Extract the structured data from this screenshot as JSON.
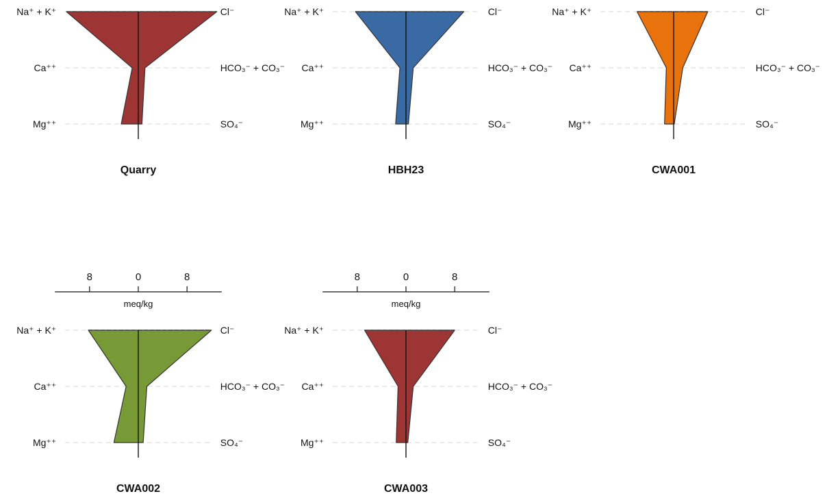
{
  "chart_data": [
    {
      "type": "stiff",
      "title": "Quarry",
      "color": "#9e3535",
      "xlabel": "meq/kg",
      "scale": {
        "ticks": [
          8,
          0,
          8
        ],
        "range": [
          -12,
          12
        ]
      },
      "cations": [
        "Na⁺ + K⁺",
        "Ca⁺⁺",
        "Mg⁺⁺"
      ],
      "anions": [
        "Cl⁻",
        "HCO₃⁻ + CO₃⁻",
        "SO₄⁻"
      ],
      "cation_values": [
        11.8,
        1.0,
        2.8
      ],
      "anion_values": [
        12.9,
        1.1,
        0.6
      ],
      "show_axis": false
    },
    {
      "type": "stiff",
      "title": "HBH23",
      "color": "#3a6aa3",
      "xlabel": "meq/kg",
      "scale": {
        "ticks": [
          8,
          0,
          8
        ],
        "range": [
          -12,
          12
        ]
      },
      "cations": [
        "Na⁺ + K⁺",
        "Ca⁺⁺",
        "Mg⁺⁺"
      ],
      "anions": [
        "Cl⁻",
        "HCO₃⁻ + CO₃⁻",
        "SO₄⁻"
      ],
      "cation_values": [
        8.3,
        1.0,
        1.7
      ],
      "anion_values": [
        9.5,
        1.2,
        0.4
      ],
      "show_axis": false
    },
    {
      "type": "stiff",
      "title": "CWA001",
      "color": "#e8720c",
      "xlabel": "meq/kg",
      "scale": {
        "ticks": [
          8,
          0,
          8
        ],
        "range": [
          -12,
          12
        ]
      },
      "cations": [
        "Na⁺ + K⁺",
        "Ca⁺⁺",
        "Mg⁺⁺"
      ],
      "anions": [
        "Cl⁻",
        "HCO₃⁻ + CO₃⁻",
        "SO₄⁻"
      ],
      "cation_values": [
        6.0,
        1.2,
        1.5
      ],
      "anion_values": [
        5.6,
        1.5,
        0.1
      ],
      "show_axis": false
    },
    {
      "type": "stiff",
      "title": "CWA002",
      "color": "#779a37",
      "xlabel": "meq/kg",
      "scale": {
        "ticks": [
          8,
          0,
          8
        ],
        "range": [
          -12,
          12
        ]
      },
      "cations": [
        "Na⁺ + K⁺",
        "Ca⁺⁺",
        "Mg⁺⁺"
      ],
      "anions": [
        "Cl⁻",
        "HCO₃⁻ + CO₃⁻",
        "SO₄⁻"
      ],
      "cation_values": [
        8.2,
        2.0,
        4.0
      ],
      "anion_values": [
        12.0,
        1.4,
        0.8
      ],
      "show_axis": true
    },
    {
      "type": "stiff",
      "title": "CWA003",
      "color": "#9e3535",
      "xlabel": "meq/kg",
      "scale": {
        "ticks": [
          8,
          0,
          8
        ],
        "range": [
          -12,
          12
        ]
      },
      "cations": [
        "Na⁺ + K⁺",
        "Ca⁺⁺",
        "Mg⁺⁺"
      ],
      "anions": [
        "Cl⁻",
        "HCO₃⁻ + CO₃⁻",
        "SO₄⁻"
      ],
      "cation_values": [
        6.8,
        1.3,
        1.6
      ],
      "anion_values": [
        8.0,
        1.2,
        0.3
      ],
      "show_axis": true
    }
  ]
}
